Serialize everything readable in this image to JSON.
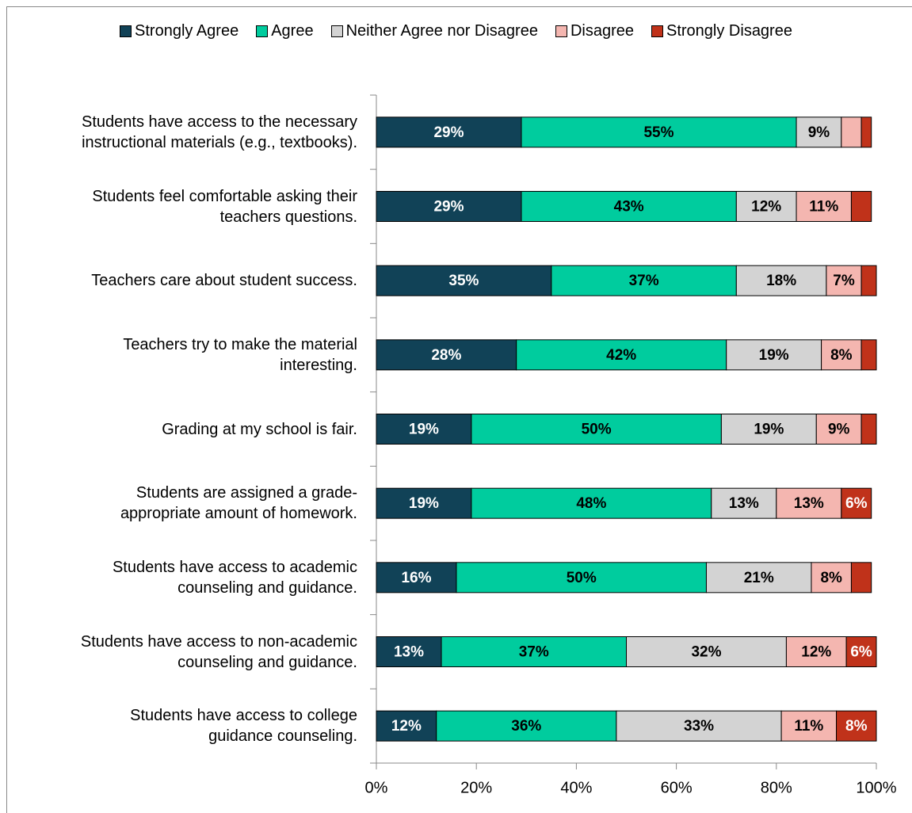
{
  "chart_data": {
    "type": "stacked_bar_horizontal",
    "categories": [
      "Students have access to the necessary\ninstructional materials (e.g., textbooks).",
      "Students feel comfortable asking their\nteachers questions.",
      "Teachers care about student success.",
      "Teachers try to make the material\ninteresting.",
      "Grading at my school is fair.",
      "Students are assigned a grade-\nappropriate amount of homework.",
      "Students have access to academic\ncounseling and guidance.",
      "Students have access to non-academic\ncounseling and guidance.",
      "Students have access to college\nguidance counseling."
    ],
    "series": [
      {
        "name": "Strongly Agree",
        "color": "#114257",
        "values": [
          29,
          29,
          35,
          28,
          19,
          19,
          16,
          13,
          12
        ],
        "value_labels": [
          "29%",
          "29%",
          "35%",
          "28%",
          "19%",
          "19%",
          "16%",
          "13%",
          "12%"
        ]
      },
      {
        "name": "Agree",
        "color": "#00cc9e",
        "values": [
          55,
          43,
          37,
          42,
          50,
          48,
          50,
          37,
          36
        ],
        "value_labels": [
          "55%",
          "43%",
          "37%",
          "42%",
          "50%",
          "48%",
          "50%",
          "37%",
          "36%"
        ]
      },
      {
        "name": "Neither Agree nor Disagree",
        "color": "#d3d3d3",
        "values": [
          9,
          12,
          18,
          19,
          19,
          13,
          21,
          32,
          33
        ],
        "value_labels": [
          "9%",
          "12%",
          "18%",
          "19%",
          "19%",
          "13%",
          "21%",
          "32%",
          "33%"
        ]
      },
      {
        "name": "Disagree",
        "color": "#f4b6b0",
        "values": [
          4,
          11,
          7,
          8,
          9,
          13,
          8,
          12,
          11
        ],
        "value_labels": [
          null,
          "11%",
          "7%",
          "8%",
          "9%",
          "13%",
          "8%",
          "12%",
          "11%"
        ]
      },
      {
        "name": "Strongly Disagree",
        "color": "#c0321a",
        "values": [
          2,
          4,
          3,
          3,
          3,
          6,
          4,
          6,
          8
        ],
        "value_labels": [
          null,
          null,
          null,
          null,
          null,
          "6%",
          null,
          "6%",
          "8%"
        ]
      }
    ],
    "xlim": [
      0,
      100
    ],
    "xticks": [
      {
        "value": 0,
        "label": "0%"
      },
      {
        "value": 20,
        "label": "20%"
      },
      {
        "value": 40,
        "label": "40%"
      },
      {
        "value": 60,
        "label": "60%"
      },
      {
        "value": 80,
        "label": "80%"
      },
      {
        "value": 100,
        "label": "100%"
      }
    ],
    "legend": "top"
  }
}
